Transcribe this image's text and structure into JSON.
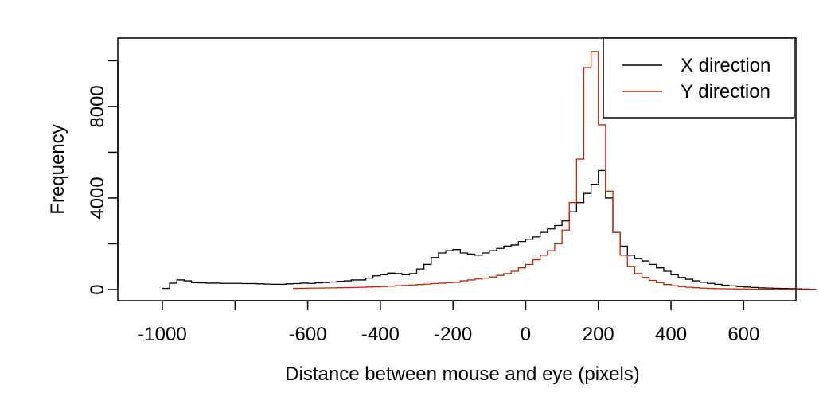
{
  "chart_data": {
    "type": "line",
    "style": "step",
    "title": "",
    "xlabel": "Distance between mouse and eye (pixels)",
    "ylabel": "Frequency",
    "xlim": [
      -1000,
      700
    ],
    "ylim": [
      0,
      10500
    ],
    "x_ticks": [
      -1000,
      -800,
      -600,
      -400,
      -200,
      0,
      200,
      400,
      600
    ],
    "x_tick_labels": [
      "-1000",
      "",
      "-600",
      "-400",
      "-200",
      "0",
      "200",
      "400",
      "600"
    ],
    "y_ticks": [
      0,
      4000,
      8000
    ],
    "y_tick_labels": [
      "0",
      "4000",
      "8000"
    ],
    "extra_y_ticks": [
      2000,
      6000,
      10000
    ],
    "grid": false,
    "legend_position": "top-right",
    "bin_width": 20,
    "bins_start": -1000,
    "series": [
      {
        "name": "X direction",
        "color": "#000000",
        "values": [
          50,
          280,
          420,
          380,
          300,
          290,
          280,
          280,
          270,
          270,
          270,
          260,
          260,
          250,
          240,
          230,
          230,
          250,
          260,
          280,
          270,
          290,
          310,
          330,
          360,
          380,
          420,
          420,
          500,
          600,
          650,
          720,
          700,
          650,
          700,
          900,
          1100,
          1400,
          1600,
          1700,
          1750,
          1600,
          1550,
          1500,
          1600,
          1700,
          1800,
          1900,
          1950,
          2100,
          2200,
          2300,
          2500,
          2650,
          2800,
          3000,
          3400,
          3800,
          4200,
          4600,
          5200,
          4000,
          2500,
          1900,
          1500,
          1350,
          1250,
          1100,
          950,
          800,
          650,
          530,
          450,
          380,
          320,
          270,
          230,
          190,
          160,
          130,
          110,
          90,
          75,
          65,
          55,
          45,
          40,
          30,
          20,
          10
        ],
        "annotation": "step histogram"
      },
      {
        "name": "Y direction",
        "color": "#cc2200",
        "values": [
          0,
          0,
          0,
          0,
          0,
          0,
          0,
          0,
          0,
          0,
          0,
          0,
          0,
          0,
          0,
          0,
          0,
          0,
          50,
          55,
          60,
          65,
          70,
          75,
          80,
          85,
          90,
          100,
          110,
          120,
          130,
          150,
          170,
          180,
          200,
          220,
          240,
          260,
          280,
          300,
          320,
          380,
          420,
          460,
          500,
          550,
          620,
          700,
          800,
          950,
          1100,
          1300,
          1500,
          1700,
          2000,
          2600,
          3800,
          5700,
          9700,
          10400,
          7200,
          4300,
          2500,
          1500,
          1000,
          700,
          530,
          400,
          300,
          220,
          170,
          130,
          100,
          80,
          60,
          50,
          40,
          35,
          30,
          25,
          20,
          18,
          15,
          12,
          10,
          8,
          6,
          5,
          4,
          3
        ]
      }
    ]
  }
}
